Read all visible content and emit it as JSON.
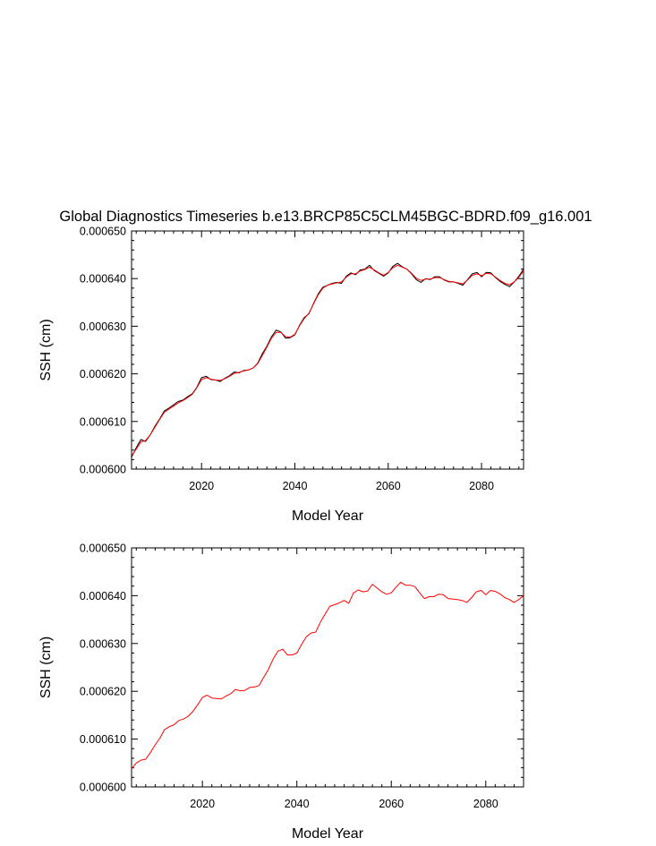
{
  "colors": {
    "raw": "#000000",
    "smoothed": "#ff0000",
    "axis": "#000000"
  },
  "chart_data": [
    {
      "type": "line",
      "title": "Global Diagnostics Timeseries b.e13.BRCP85C5CLM45BGC-BDRD.f09_g16.001",
      "xlabel": "Model Year",
      "ylabel": "SSH (cm)",
      "xlim": [
        2005,
        2089
      ],
      "ylim": [
        0.0006,
        0.00065
      ],
      "x_ticks": [
        2020,
        2040,
        2060,
        2080
      ],
      "x_tick_labels": [
        "2020",
        "2040",
        "2060",
        "2080"
      ],
      "y_ticks": [
        0.0006,
        0.00061,
        0.00062,
        0.00063,
        0.00064,
        0.00065
      ],
      "y_tick_labels": [
        "0.000600",
        "0.000610",
        "0.000620",
        "0.000630",
        "0.000640",
        "0.000650"
      ],
      "grid": false,
      "series": [
        {
          "role": "monthly",
          "color": "#000000",
          "x": [
            2005,
            2006,
            2007,
            2008,
            2009,
            2010,
            2011,
            2012,
            2013,
            2014,
            2015,
            2016,
            2017,
            2018,
            2019,
            2020,
            2021,
            2022,
            2023,
            2024,
            2025,
            2026,
            2027,
            2028,
            2029,
            2030,
            2031,
            2032,
            2033,
            2034,
            2035,
            2036,
            2037,
            2038,
            2039,
            2040,
            2041,
            2042,
            2043,
            2044,
            2045,
            2046,
            2047,
            2048,
            2049,
            2050,
            2051,
            2052,
            2053,
            2054,
            2055,
            2056,
            2057,
            2058,
            2059,
            2060,
            2061,
            2062,
            2063,
            2064,
            2065,
            2066,
            2067,
            2068,
            2069,
            2070,
            2071,
            2072,
            2073,
            2074,
            2075,
            2076,
            2077,
            2078,
            2079,
            2080,
            2081,
            2082,
            2083,
            2084,
            2085,
            2086,
            2087,
            2088,
            2089
          ],
          "y": [
            0.0006025,
            0.0006045,
            0.0006062,
            0.0006058,
            0.0006072,
            0.000609,
            0.0006105,
            0.0006122,
            0.0006128,
            0.0006135,
            0.0006142,
            0.0006145,
            0.0006152,
            0.0006158,
            0.0006172,
            0.0006192,
            0.0006195,
            0.0006188,
            0.0006187,
            0.0006184,
            0.0006191,
            0.0006196,
            0.0006204,
            0.0006202,
            0.0006207,
            0.0006208,
            0.0006212,
            0.0006222,
            0.0006242,
            0.0006258,
            0.0006278,
            0.0006292,
            0.0006288,
            0.0006275,
            0.0006276,
            0.0006282,
            0.0006302,
            0.0006318,
            0.0006326,
            0.0006348,
            0.0006368,
            0.0006382,
            0.0006386,
            0.000639,
            0.0006392,
            0.000639,
            0.0006405,
            0.0006412,
            0.0006408,
            0.0006418,
            0.000642,
            0.0006428,
            0.0006417,
            0.0006411,
            0.0006405,
            0.0006412,
            0.0006426,
            0.0006432,
            0.0006425,
            0.000642,
            0.000641,
            0.0006398,
            0.0006392,
            0.00064,
            0.0006398,
            0.0006404,
            0.0006404,
            0.0006397,
            0.0006393,
            0.0006393,
            0.000639,
            0.0006386,
            0.0006398,
            0.000641,
            0.0006413,
            0.0006404,
            0.0006413,
            0.0006412,
            0.0006402,
            0.0006394,
            0.0006388,
            0.0006383,
            0.0006393,
            0.0006405,
            0.000642
          ]
        },
        {
          "role": "smoothed",
          "color": "#ff0000",
          "x": [
            2005,
            2006,
            2007,
            2008,
            2009,
            2010,
            2011,
            2012,
            2013,
            2014,
            2015,
            2016,
            2017,
            2018,
            2019,
            2020,
            2021,
            2022,
            2023,
            2024,
            2025,
            2026,
            2027,
            2028,
            2029,
            2030,
            2031,
            2032,
            2033,
            2034,
            2035,
            2036,
            2037,
            2038,
            2039,
            2040,
            2041,
            2042,
            2043,
            2044,
            2045,
            2046,
            2047,
            2048,
            2049,
            2050,
            2051,
            2052,
            2053,
            2054,
            2055,
            2056,
            2057,
            2058,
            2059,
            2060,
            2061,
            2062,
            2063,
            2064,
            2065,
            2066,
            2067,
            2068,
            2069,
            2070,
            2071,
            2072,
            2073,
            2074,
            2075,
            2076,
            2077,
            2078,
            2079,
            2080,
            2081,
            2082,
            2083,
            2084,
            2085,
            2086,
            2087,
            2088,
            2089
          ],
          "y": [
            0.0006028,
            0.0006042,
            0.0006057,
            0.000606,
            0.0006072,
            0.0006088,
            0.0006104,
            0.0006119,
            0.0006126,
            0.0006132,
            0.0006139,
            0.0006144,
            0.000615,
            0.0006157,
            0.0006171,
            0.0006188,
            0.0006192,
            0.0006189,
            0.0006187,
            0.0006186,
            0.000619,
            0.0006195,
            0.0006201,
            0.0006203,
            0.0006206,
            0.0006208,
            0.0006212,
            0.0006221,
            0.0006238,
            0.0006256,
            0.0006275,
            0.0006287,
            0.0006287,
            0.0006278,
            0.0006277,
            0.0006283,
            0.0006301,
            0.0006316,
            0.0006327,
            0.0006347,
            0.0006366,
            0.000638,
            0.0006386,
            0.0006389,
            0.0006391,
            0.0006393,
            0.0006403,
            0.000641,
            0.000641,
            0.0006416,
            0.0006419,
            0.0006424,
            0.0006418,
            0.0006412,
            0.0006407,
            0.0006413,
            0.0006423,
            0.0006428,
            0.0006424,
            0.000642,
            0.0006411,
            0.0006401,
            0.0006396,
            0.0006399,
            0.0006399,
            0.0006402,
            0.0006402,
            0.0006398,
            0.0006394,
            0.0006393,
            0.0006391,
            0.0006389,
            0.0006397,
            0.0006407,
            0.000641,
            0.0006406,
            0.0006411,
            0.000641,
            0.0006403,
            0.0006396,
            0.000639,
            0.0006387,
            0.0006393,
            0.0006403,
            0.0006416
          ]
        }
      ]
    },
    {
      "type": "line",
      "title": "",
      "xlabel": "Model Year",
      "ylabel": "SSH (cm)",
      "xlim": [
        2005,
        2088
      ],
      "ylim": [
        0.0006,
        0.00065
      ],
      "x_ticks": [
        2020,
        2040,
        2060,
        2080
      ],
      "x_tick_labels": [
        "2020",
        "2040",
        "2060",
        "2080"
      ],
      "y_ticks": [
        0.0006,
        0.00061,
        0.00062,
        0.00063,
        0.00064,
        0.00065
      ],
      "y_tick_labels": [
        "0.000600",
        "0.000610",
        "0.000620",
        "0.000630",
        "0.000640",
        "0.000650"
      ],
      "grid": false,
      "series": [
        {
          "role": "annual",
          "color": "#ff0000",
          "x": [
            2005,
            2006,
            2007,
            2008,
            2009,
            2010,
            2011,
            2012,
            2013,
            2014,
            2015,
            2016,
            2017,
            2018,
            2019,
            2020,
            2021,
            2022,
            2023,
            2024,
            2025,
            2026,
            2027,
            2028,
            2029,
            2030,
            2031,
            2032,
            2033,
            2034,
            2035,
            2036,
            2037,
            2038,
            2039,
            2040,
            2041,
            2042,
            2043,
            2044,
            2045,
            2046,
            2047,
            2048,
            2049,
            2050,
            2051,
            2052,
            2053,
            2054,
            2055,
            2056,
            2057,
            2058,
            2059,
            2060,
            2061,
            2062,
            2063,
            2064,
            2065,
            2066,
            2067,
            2068,
            2069,
            2070,
            2071,
            2072,
            2073,
            2074,
            2075,
            2076,
            2077,
            2078,
            2079,
            2080,
            2081,
            2082,
            2083,
            2084,
            2085,
            2086,
            2087,
            2088
          ],
          "y": [
            0.0006038,
            0.000605,
            0.0006056,
            0.0006058,
            0.0006072,
            0.0006088,
            0.0006102,
            0.000612,
            0.0006126,
            0.000613,
            0.0006139,
            0.0006142,
            0.0006148,
            0.0006158,
            0.0006172,
            0.0006187,
            0.0006192,
            0.0006186,
            0.0006185,
            0.0006184,
            0.000619,
            0.0006195,
            0.0006204,
            0.0006201,
            0.0006202,
            0.0006208,
            0.0006209,
            0.0006212,
            0.000623,
            0.0006246,
            0.0006268,
            0.0006284,
            0.0006288,
            0.0006276,
            0.0006276,
            0.000628,
            0.0006298,
            0.0006314,
            0.0006322,
            0.0006324,
            0.0006345,
            0.0006362,
            0.0006378,
            0.0006381,
            0.0006385,
            0.000639,
            0.0006384,
            0.0006406,
            0.0006412,
            0.0006408,
            0.000641,
            0.0006424,
            0.0006416,
            0.0006408,
            0.0006403,
            0.0006406,
            0.0006418,
            0.0006428,
            0.0006422,
            0.0006422,
            0.0006419,
            0.0006406,
            0.0006394,
            0.0006398,
            0.0006398,
            0.0006403,
            0.0006402,
            0.0006394,
            0.0006393,
            0.0006392,
            0.000639,
            0.0006386,
            0.0006396,
            0.0006408,
            0.0006411,
            0.0006402,
            0.0006411,
            0.0006409,
            0.0006404,
            0.0006396,
            0.0006392,
            0.0006386,
            0.0006392,
            0.00064
          ]
        }
      ]
    }
  ]
}
